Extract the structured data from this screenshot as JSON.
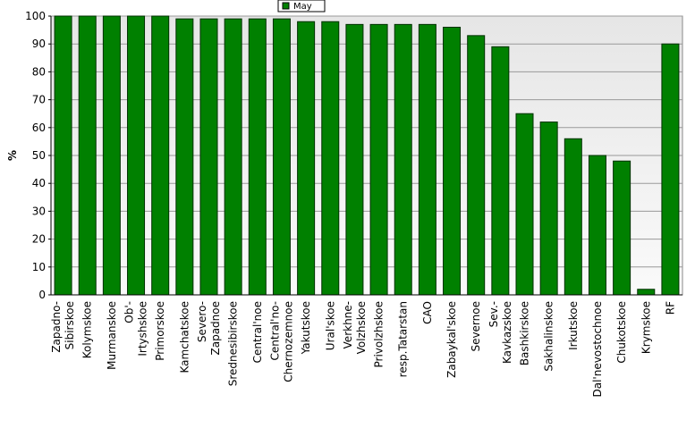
{
  "chart_data": {
    "type": "bar",
    "y_label": "%",
    "categories": [
      "Zapadno-\nSibirskoe",
      "Kolymskoe",
      "Murmanskoe",
      "Ob'-\nIrtyshskoe",
      "Primorskoe",
      "Kamchatskoe",
      "Severo-\nZapadnoe",
      "Srednesibirskoe",
      "Central'noe",
      "Central'no-\nChernozemnoe",
      "Yakutskoe",
      "Ural'skoe",
      "Verkhne-\nVolzhskoe",
      "Privolzhskoe",
      "resp.Tatarstan",
      "CAO",
      "Zabaykal'skoe",
      "Severnoe",
      "Sev.-\nKavkazskoe",
      "Bashkirskoe",
      "Sakhalinskoe",
      "Irkutskoe",
      "Dal'nevostochnoe",
      "Chukotskoe",
      "Krymskoe",
      "RF"
    ],
    "series": [
      {
        "name": "May",
        "color": "#008000",
        "values": [
          100,
          100,
          100,
          100,
          100,
          99,
          99,
          99,
          99,
          99,
          98,
          98,
          97,
          97,
          97,
          97,
          96,
          93,
          89,
          65,
          62,
          56,
          50,
          48,
          2,
          90
        ]
      }
    ],
    "ylim": [
      0,
      100
    ],
    "yticks": [
      0,
      10,
      20,
      30,
      40,
      50,
      60,
      70,
      80,
      90,
      100
    ],
    "grid": true,
    "legend": "top"
  }
}
